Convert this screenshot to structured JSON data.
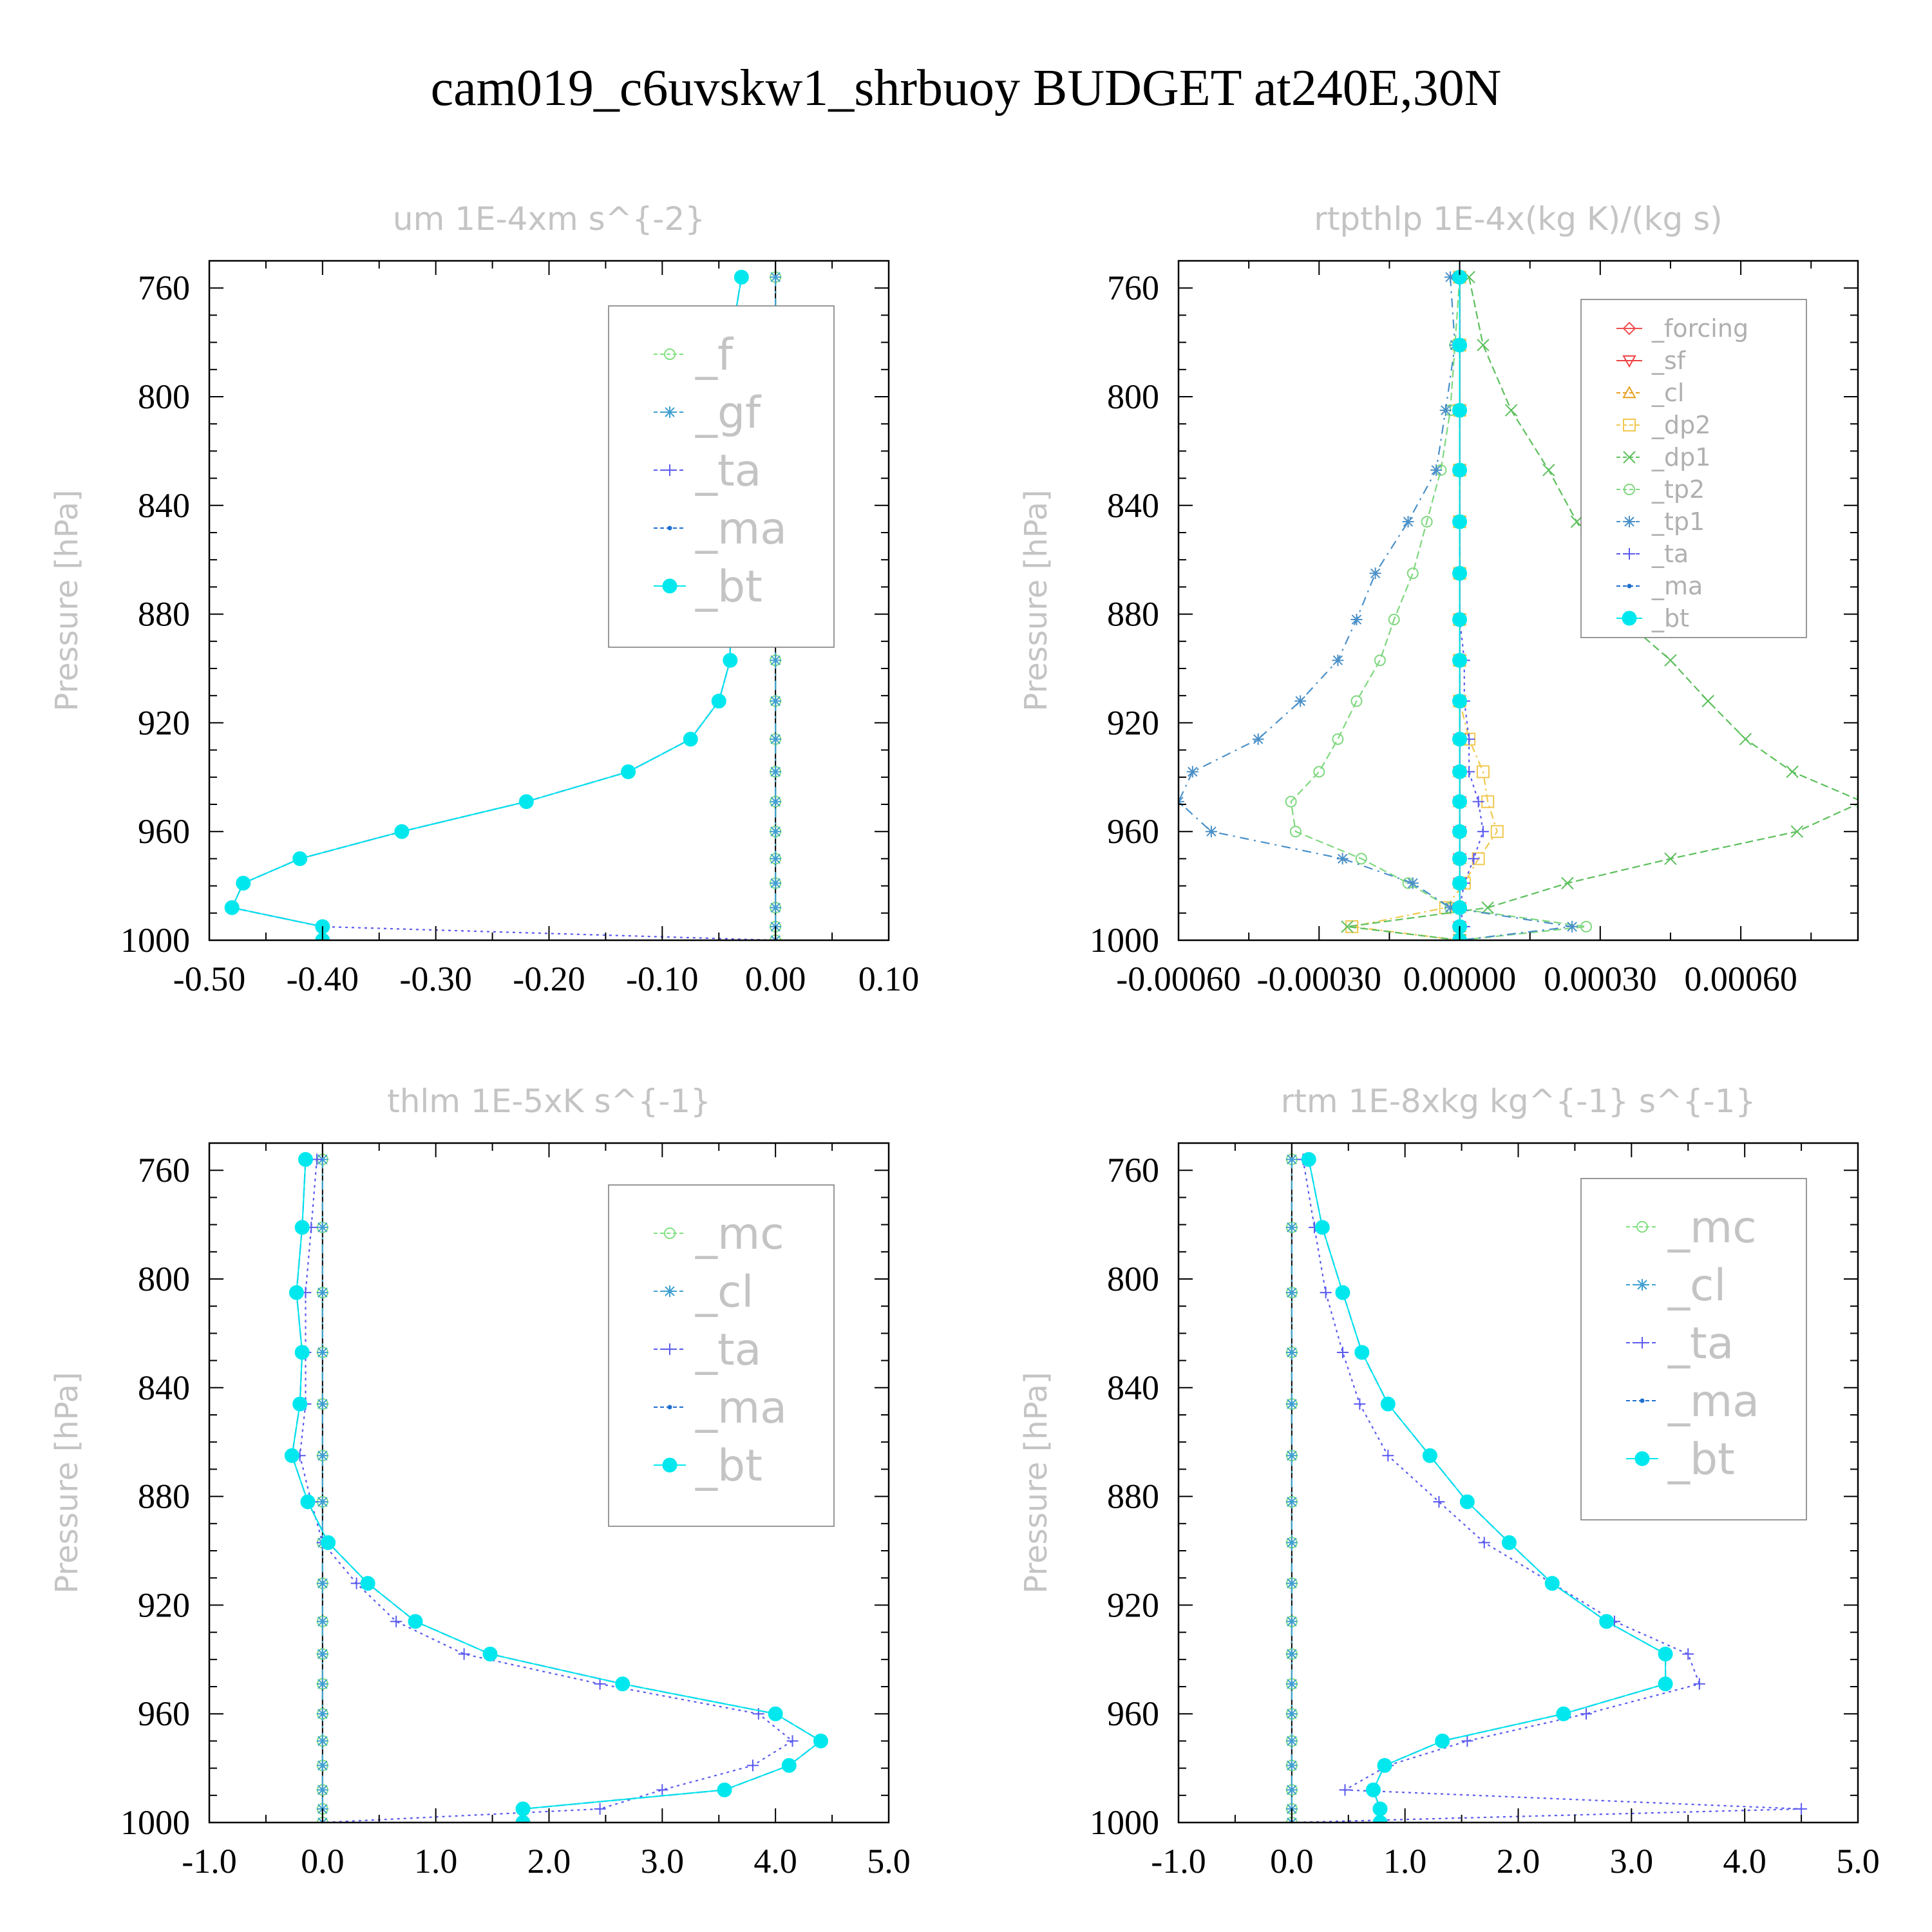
{
  "title": "cam019_c6uvskw1_shrbuoy  BUDGET at240E,30N",
  "colors": {
    "_f": "#7fe07f",
    "_gf": "#3f9fd0",
    "_ta": "#5a5af0",
    "_ma": "#1f6fd0",
    "_bt": "#00e8ee",
    "_forcing": "#f05050",
    "_sf": "#f04040",
    "_cl": "#e8a020",
    "_dp2": "#f0c850",
    "_dp1": "#5cc05c",
    "_tp2": "#7fd87f",
    "_tp1": "#4a90c8",
    "_mc": "#7fe07f",
    "_cl_blue": "#3f9fd0"
  },
  "chart_data": [
    {
      "id": "um",
      "type": "line",
      "title": "um  1E-4xm s^{-2}",
      "xlabel": "",
      "ylabel": "Pressure [hPa]",
      "xlim": [
        -0.5,
        0.1
      ],
      "ylim": [
        1000,
        750
      ],
      "xticks": [
        -0.5,
        -0.4,
        -0.3,
        -0.2,
        -0.1,
        0.0,
        0.1
      ],
      "xtick_labels": [
        "-0.50",
        "-0.40",
        "-0.30",
        "-0.20",
        "-0.10",
        "0.00",
        "0.10"
      ],
      "yticks": [
        760,
        800,
        840,
        880,
        920,
        960,
        1000
      ],
      "ytick_labels": [
        "760",
        "800",
        "840",
        "880",
        "920",
        "960",
        "1000"
      ],
      "grid": false,
      "legend": "top-right",
      "legend_style": "big",
      "y": [
        756,
        781,
        805,
        827,
        846,
        865,
        882,
        897,
        912,
        926,
        938,
        949,
        960,
        970,
        979,
        988,
        995,
        1000
      ],
      "series": [
        {
          "name": "_f",
          "color": "_f",
          "marker": "circle-open",
          "dash": "14,8,3,8",
          "values": [
            0,
            0,
            0,
            0,
            0,
            0,
            0,
            0,
            0,
            0,
            0,
            0,
            0,
            0,
            0,
            0,
            0,
            0
          ]
        },
        {
          "name": "_gf",
          "color": "_gf",
          "marker": "star",
          "dash": "14,8,3,8",
          "values": [
            0,
            0,
            0,
            0,
            0,
            0,
            0,
            0,
            0,
            0,
            0,
            0,
            0,
            0,
            0,
            0,
            0,
            0
          ]
        },
        {
          "name": "_ta",
          "color": "_ta",
          "marker": "plus",
          "dash": "4,6",
          "values": [
            -0.03,
            -0.04,
            -0.045,
            -0.045,
            -0.045,
            -0.04,
            -0.04,
            -0.04,
            -0.05,
            -0.075,
            -0.13,
            -0.22,
            -0.33,
            -0.42,
            -0.47,
            -0.48,
            -0.4,
            0.0
          ]
        },
        {
          "name": "_ma",
          "color": "_ma",
          "marker": "dot",
          "dash": "16,6",
          "values": [
            -0.03,
            -0.04,
            -0.045,
            -0.045,
            -0.045,
            -0.04,
            -0.04,
            -0.04,
            -0.05,
            -0.075,
            -0.13,
            -0.22,
            -0.33,
            -0.42,
            -0.47,
            -0.48,
            -0.4,
            -0.4
          ]
        },
        {
          "name": "_bt",
          "color": "_bt",
          "marker": "filled",
          "dash": "",
          "values": [
            -0.03,
            -0.04,
            -0.045,
            -0.045,
            -0.045,
            -0.04,
            -0.04,
            -0.04,
            -0.05,
            -0.075,
            -0.13,
            -0.22,
            -0.33,
            -0.42,
            -0.47,
            -0.48,
            -0.4,
            -0.4
          ]
        }
      ]
    },
    {
      "id": "rtpthlp",
      "type": "line",
      "title": "rtpthlp  1E-4x(kg K)/(kg s)",
      "xlabel": "",
      "ylabel": "Pressure [hPa]",
      "xlim": [
        -0.0006,
        0.00085
      ],
      "ylim": [
        1000,
        750
      ],
      "xticks": [
        -0.0006,
        -0.0003,
        0.0,
        0.0003,
        0.0006
      ],
      "xtick_labels": [
        "-0.00060",
        "-0.00030",
        "0.00000",
        "0.00030",
        "0.00060"
      ],
      "yticks": [
        760,
        800,
        840,
        880,
        920,
        960,
        1000
      ],
      "ytick_labels": [
        "760",
        "800",
        "840",
        "880",
        "920",
        "960",
        "1000"
      ],
      "grid": false,
      "legend": "top-right",
      "legend_style": "small",
      "y": [
        756,
        781,
        805,
        827,
        846,
        865,
        882,
        897,
        912,
        926,
        938,
        949,
        960,
        970,
        979,
        988,
        995,
        1000
      ],
      "series": [
        {
          "name": "_forcing",
          "color": "_forcing",
          "marker": "diamond",
          "dash": "",
          "values": [
            0,
            0,
            0,
            0,
            0,
            0,
            0,
            0,
            0,
            0,
            0,
            0,
            0,
            0,
            0,
            0,
            0,
            0
          ]
        },
        {
          "name": "_sf",
          "color": "_sf",
          "marker": "tri-down",
          "dash": "",
          "values": [
            0,
            0,
            0,
            0,
            0,
            0,
            0,
            0,
            0,
            0,
            0,
            0,
            0,
            0,
            0,
            0,
            0,
            0
          ]
        },
        {
          "name": "_cl",
          "color": "_cl",
          "marker": "tri-up",
          "dash": "12,6,3,6",
          "values": [
            0,
            0,
            0,
            0,
            0,
            0,
            0,
            0,
            0,
            0,
            0,
            0,
            0,
            0,
            0,
            0,
            0,
            0
          ]
        },
        {
          "name": "_dp2",
          "color": "_dp2",
          "marker": "square",
          "dash": "12,6,3,6",
          "values": [
            0,
            0,
            0,
            0,
            0,
            0,
            0,
            0,
            0,
            2e-05,
            5e-05,
            6e-05,
            8e-05,
            4e-05,
            1e-05,
            -3e-05,
            -0.00023,
            0
          ]
        },
        {
          "name": "_dp1",
          "color": "_dp1",
          "marker": "x",
          "dash": "12,6",
          "values": [
            2e-05,
            5e-05,
            0.00011,
            0.00019,
            0.00025,
            0.00031,
            0.00035,
            0.00045,
            0.00053,
            0.00061,
            0.00071,
            0.00086,
            0.00072,
            0.00045,
            0.00023,
            6e-05,
            -0.00024,
            0
          ]
        },
        {
          "name": "_tp2",
          "color": "_tp2",
          "marker": "circle-open",
          "dash": "12,6",
          "values": [
            0,
            -1e-05,
            -2e-05,
            -4e-05,
            -7e-05,
            -0.0001,
            -0.00014,
            -0.00017,
            -0.00022,
            -0.00026,
            -0.0003,
            -0.00036,
            -0.00035,
            -0.00021,
            -0.00011,
            -2e-05,
            0.00027,
            0
          ]
        },
        {
          "name": "_tp1",
          "color": "_tp1",
          "marker": "star",
          "dash": "14,8,3,8",
          "values": [
            -2e-05,
            -1e-05,
            -3e-05,
            -5e-05,
            -0.00011,
            -0.00018,
            -0.00022,
            -0.00026,
            -0.00034,
            -0.00043,
            -0.00057,
            -0.0006,
            -0.00053,
            -0.00025,
            -0.0001,
            -2e-05,
            0.00024,
            0
          ]
        },
        {
          "name": "_ta",
          "color": "_ta",
          "marker": "plus",
          "dash": "4,6",
          "values": [
            0,
            0,
            0,
            0,
            0,
            0,
            0,
            1e-05,
            1e-05,
            2e-05,
            2e-05,
            4e-05,
            5e-05,
            3e-05,
            1e-05,
            0,
            1e-05,
            0
          ]
        },
        {
          "name": "_ma",
          "color": "_ma",
          "marker": "dot",
          "dash": "16,6",
          "values": [
            0,
            0,
            0,
            0,
            0,
            0,
            0,
            0,
            0,
            0,
            0,
            0,
            0,
            0,
            0,
            0,
            0,
            0
          ]
        },
        {
          "name": "_bt",
          "color": "_bt",
          "marker": "filled",
          "dash": "",
          "values": [
            0,
            0,
            0,
            0,
            0,
            0,
            0,
            0,
            0,
            0,
            0,
            0,
            0,
            0,
            0,
            0,
            0,
            0
          ]
        }
      ]
    },
    {
      "id": "thlm",
      "type": "line",
      "title": "thlm  1E-5xK s^{-1}",
      "xlabel": "",
      "ylabel": "Pressure [hPa]",
      "xlim": [
        -1.0,
        5.0
      ],
      "ylim": [
        1000,
        750
      ],
      "xticks": [
        -1.0,
        0.0,
        1.0,
        2.0,
        3.0,
        4.0,
        5.0
      ],
      "xtick_labels": [
        "-1.0",
        "0.0",
        "1.0",
        "2.0",
        "3.0",
        "4.0",
        "5.0"
      ],
      "yticks": [
        760,
        800,
        840,
        880,
        920,
        960,
        1000
      ],
      "ytick_labels": [
        "760",
        "800",
        "840",
        "880",
        "920",
        "960",
        "1000"
      ],
      "grid": false,
      "legend": "top-right",
      "legend_style": "big",
      "y": [
        756,
        781,
        805,
        827,
        846,
        865,
        882,
        897,
        912,
        926,
        938,
        949,
        960,
        970,
        979,
        988,
        995,
        1000
      ],
      "series": [
        {
          "name": "_mc",
          "color": "_mc",
          "marker": "circle-open",
          "dash": "14,8,3,8",
          "values": [
            0,
            0,
            0,
            0,
            0,
            0,
            0,
            0,
            0,
            0,
            0,
            0,
            0,
            0,
            0,
            0,
            0,
            0
          ]
        },
        {
          "name": "_cl",
          "color": "_cl_blue",
          "marker": "star",
          "dash": "14,8,3,8",
          "values": [
            0,
            0,
            0,
            0,
            0,
            0,
            0,
            0,
            0,
            0,
            0,
            0,
            0,
            0,
            0,
            0,
            0,
            0
          ]
        },
        {
          "name": "_ta",
          "color": "_ta",
          "marker": "plus",
          "dash": "4,6",
          "values": [
            -0.05,
            -0.1,
            -0.15,
            -0.15,
            -0.15,
            -0.2,
            -0.1,
            0.0,
            0.3,
            0.65,
            1.25,
            2.45,
            3.85,
            4.15,
            3.8,
            3.0,
            2.45,
            0.0
          ]
        },
        {
          "name": "_ma",
          "color": "_ma",
          "marker": "dot",
          "dash": "16,6",
          "values": [
            -0.15,
            -0.18,
            -0.23,
            -0.18,
            -0.2,
            -0.27,
            -0.13,
            0.05,
            0.4,
            0.82,
            1.48,
            2.65,
            4.0,
            4.4,
            4.12,
            3.55,
            1.77,
            1.77
          ]
        },
        {
          "name": "_bt",
          "color": "_bt",
          "marker": "filled",
          "dash": "",
          "values": [
            -0.15,
            -0.18,
            -0.23,
            -0.18,
            -0.2,
            -0.27,
            -0.13,
            0.05,
            0.4,
            0.82,
            1.48,
            2.65,
            4.0,
            4.4,
            4.12,
            3.55,
            1.77,
            1.77
          ]
        }
      ]
    },
    {
      "id": "rtm",
      "type": "line",
      "title": "rtm  1E-8xkg kg^{-1} s^{-1}",
      "xlabel": "",
      "ylabel": "Pressure [hPa]",
      "xlim": [
        -1.0,
        5.0
      ],
      "ylim": [
        1000,
        750
      ],
      "xticks": [
        -1.0,
        0.0,
        1.0,
        2.0,
        3.0,
        4.0,
        5.0
      ],
      "xtick_labels": [
        "-1.0",
        "0.0",
        "1.0",
        "2.0",
        "3.0",
        "4.0",
        "5.0"
      ],
      "yticks": [
        760,
        800,
        840,
        880,
        920,
        960,
        1000
      ],
      "ytick_labels": [
        "760",
        "800",
        "840",
        "880",
        "920",
        "960",
        "1000"
      ],
      "grid": false,
      "legend": "top-right",
      "legend_style": "big",
      "y": [
        756,
        781,
        805,
        827,
        846,
        865,
        882,
        897,
        912,
        926,
        938,
        949,
        960,
        970,
        979,
        988,
        995,
        1000
      ],
      "series": [
        {
          "name": "_mc",
          "color": "_mc",
          "marker": "circle-open",
          "dash": "14,8,3,8",
          "values": [
            0,
            0,
            0,
            0,
            0,
            0,
            0,
            0,
            0,
            0,
            0,
            0,
            0,
            0,
            0,
            0,
            0,
            0
          ]
        },
        {
          "name": "_cl",
          "color": "_cl_blue",
          "marker": "star",
          "dash": "14,8,3,8",
          "values": [
            0,
            0,
            0,
            0,
            0,
            0,
            0,
            0,
            0,
            0,
            0,
            0,
            0,
            0,
            0,
            0,
            0,
            0
          ]
        },
        {
          "name": "_ta",
          "color": "_ta",
          "marker": "plus",
          "dash": "4,6",
          "values": [
            0.1,
            0.2,
            0.3,
            0.45,
            0.6,
            0.85,
            1.3,
            1.7,
            2.3,
            2.85,
            3.5,
            3.6,
            2.6,
            1.55,
            0.85,
            0.47,
            4.5,
            0.0
          ]
        },
        {
          "name": "_ma",
          "color": "_ma",
          "marker": "dot",
          "dash": "16,6",
          "values": [
            0.15,
            0.27,
            0.45,
            0.62,
            0.85,
            1.22,
            1.55,
            1.92,
            2.3,
            2.78,
            3.3,
            3.3,
            2.4,
            1.33,
            0.82,
            0.72,
            0.78,
            0.78
          ]
        },
        {
          "name": "_bt",
          "color": "_bt",
          "marker": "filled",
          "dash": "",
          "values": [
            0.15,
            0.27,
            0.45,
            0.62,
            0.85,
            1.22,
            1.55,
            1.92,
            2.3,
            2.78,
            3.3,
            3.3,
            2.4,
            1.33,
            0.82,
            0.72,
            0.78,
            0.78
          ]
        }
      ]
    }
  ]
}
